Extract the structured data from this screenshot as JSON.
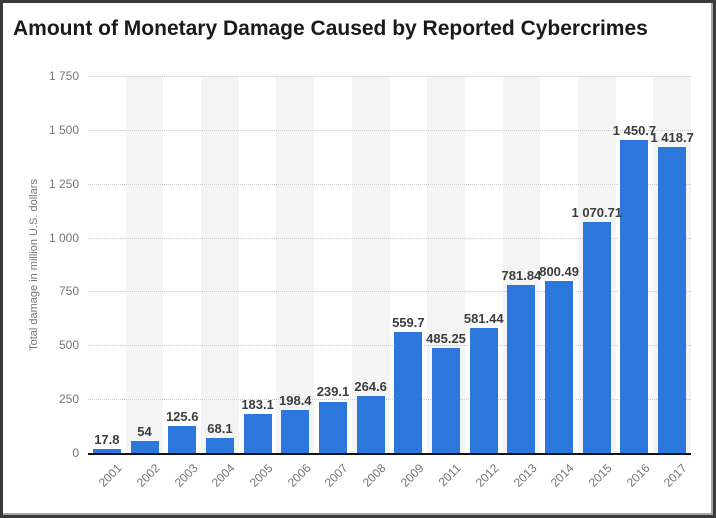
{
  "window": {
    "background": "#ffffff",
    "frame_border_color": "#3a3a3a",
    "frame_shadow_color": "#a8a8a8"
  },
  "chart_data": {
    "type": "bar",
    "title": "Amount of Monetary Damage Caused by Reported Cybercrimes",
    "subtitle": "",
    "xlabel": "",
    "ylabel": "Total damage in million U.S. dollars",
    "categories": [
      "2001",
      "2002",
      "2003",
      "2004",
      "2005",
      "2006",
      "2007",
      "2008",
      "2009",
      "2011",
      "2012",
      "2013",
      "2014",
      "2015",
      "2016",
      "2017"
    ],
    "values": [
      17.8,
      54,
      125.6,
      68.1,
      183.1,
      198.4,
      239.1,
      264.6,
      559.7,
      485.25,
      581.44,
      781.84,
      800.49,
      1070.71,
      1450.7,
      1418.7
    ],
    "value_labels": [
      "17.8",
      "54",
      "125.6",
      "68.1",
      "183.1",
      "198.4",
      "239.1",
      "264.6",
      "559.7",
      "485.25",
      "581.44",
      "781.84",
      "800.49",
      "1 070.71",
      "1 450.7",
      "1 418.7"
    ],
    "ylim": [
      0,
      1750
    ],
    "yticks": {
      "values": [
        1750,
        1500,
        1250,
        1000,
        750,
        500,
        250,
        0
      ],
      "labels": [
        "1 750",
        "1 500",
        "1 250",
        "1 000",
        "750",
        "500",
        "250",
        "0"
      ]
    },
    "grid": "horizontal-dotted",
    "legend_position": "none",
    "striped_columns": "alternate-even",
    "colors": {
      "bar": "#2c77dc",
      "value_label": "#3d3d3d",
      "tick_label": "#757575",
      "gridline": "#cbcbcb",
      "stripe": "#f4f4f4",
      "axis_line": "#141414",
      "title": "#1a1a1a"
    }
  }
}
